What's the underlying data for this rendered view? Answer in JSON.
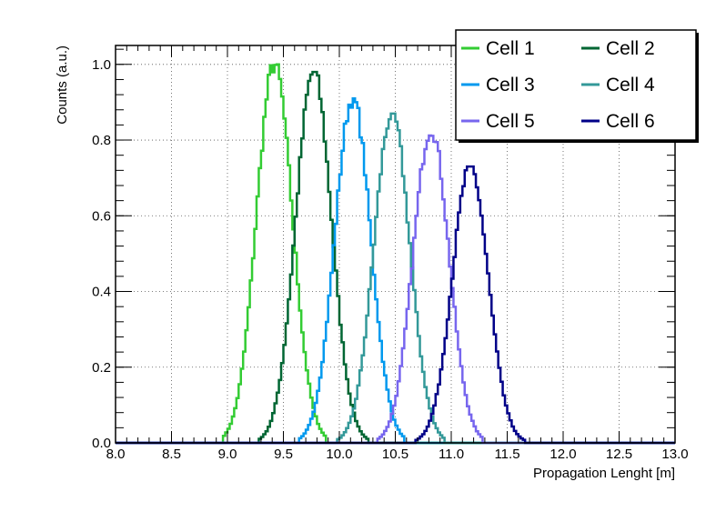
{
  "chart_data": {
    "type": "line",
    "style": "step-histogram",
    "xlabel": "Propagation Lenght [m]",
    "ylabel": "Counts (a.u.)",
    "xlim": [
      8.0,
      13.0
    ],
    "ylim": [
      0.0,
      1.05
    ],
    "x_ticks": [
      "8.0",
      "8.5",
      "9.0",
      "9.5",
      "10.0",
      "10.5",
      "11.0",
      "11.5",
      "12.0",
      "12.5",
      "13.0"
    ],
    "y_ticks": [
      "0.0",
      "0.2",
      "0.4",
      "0.6",
      "0.8",
      "1.0"
    ],
    "grid": true,
    "legend_position": "top-right",
    "series": [
      {
        "name": "Cell 1",
        "color": "#33cc33",
        "mean": 9.42,
        "sigma": 0.16,
        "peak": 1.0,
        "start": 8.95,
        "end": 9.88
      },
      {
        "name": "Cell 2",
        "color": "#006633",
        "mean": 9.77,
        "sigma": 0.16,
        "peak": 0.98,
        "start": 9.28,
        "end": 10.25
      },
      {
        "name": "Cell 3",
        "color": "#0099ee",
        "mean": 10.12,
        "sigma": 0.16,
        "peak": 0.91,
        "start": 9.63,
        "end": 10.58
      },
      {
        "name": "Cell 4",
        "color": "#339999",
        "mean": 10.47,
        "sigma": 0.16,
        "peak": 0.87,
        "start": 9.98,
        "end": 10.93
      },
      {
        "name": "Cell 5",
        "color": "#7766ee",
        "mean": 10.82,
        "sigma": 0.16,
        "peak": 0.83,
        "start": 10.33,
        "end": 11.28
      },
      {
        "name": "Cell 6",
        "color": "#000088",
        "mean": 11.17,
        "sigma": 0.16,
        "peak": 0.73,
        "start": 10.68,
        "end": 11.65
      }
    ]
  }
}
